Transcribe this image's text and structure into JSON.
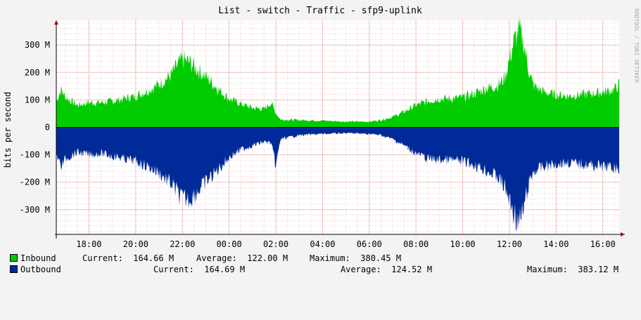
{
  "chart_data": {
    "type": "area",
    "title": "List - switch - Traffic - sfp9-uplink",
    "ylabel": "bits per second",
    "credit": "RRDTOOL / TOBI OETIKER",
    "ylim": [
      -390,
      390
    ],
    "yticks": [
      {
        "value": 300,
        "label": "300 M"
      },
      {
        "value": 200,
        "label": "200 M"
      },
      {
        "value": 100,
        "label": "100 M"
      },
      {
        "value": 0,
        "label": "0"
      },
      {
        "value": -100,
        "label": "-100 M"
      },
      {
        "value": -200,
        "label": "-200 M"
      },
      {
        "value": -300,
        "label": "-300 M"
      }
    ],
    "xlim": [
      16.6,
      40.7
    ],
    "xticks": [
      {
        "value": 18,
        "label": "18:00"
      },
      {
        "value": 20,
        "label": "20:00"
      },
      {
        "value": 22,
        "label": "22:00"
      },
      {
        "value": 24,
        "label": "00:00"
      },
      {
        "value": 26,
        "label": "02:00"
      },
      {
        "value": 28,
        "label": "04:00"
      },
      {
        "value": 30,
        "label": "06:00"
      },
      {
        "value": 32,
        "label": "08:00"
      },
      {
        "value": 34,
        "label": "10:00"
      },
      {
        "value": 36,
        "label": "12:00"
      },
      {
        "value": 38,
        "label": "14:00"
      },
      {
        "value": 40,
        "label": "16:00"
      }
    ],
    "x_unit": "hours",
    "grid": true,
    "series": [
      {
        "name": "Inbound",
        "color": "#00cc00",
        "sign": 1,
        "current": "164.66 M",
        "average": "122.00 M",
        "maximum": "380.45 M",
        "x": [
          16.6,
          16.8,
          17.0,
          17.5,
          18.0,
          18.5,
          19.0,
          19.5,
          20.0,
          20.5,
          21.0,
          21.5,
          21.8,
          22.0,
          22.3,
          22.6,
          23.0,
          23.5,
          24.0,
          24.5,
          25.0,
          25.5,
          25.8,
          26.0,
          26.2,
          27.0,
          28.0,
          29.0,
          30.0,
          30.5,
          31.0,
          31.5,
          32.0,
          32.5,
          33.0,
          33.5,
          34.0,
          34.5,
          35.0,
          35.5,
          35.8,
          36.0,
          36.2,
          36.4,
          36.6,
          36.8,
          37.0,
          37.2,
          37.5,
          38.0,
          38.5,
          39.0,
          39.5,
          40.0,
          40.5,
          40.7
        ],
        "y": [
          100,
          145,
          115,
          85,
          95,
          95,
          100,
          110,
          120,
          140,
          165,
          200,
          240,
          260,
          250,
          225,
          195,
          150,
          110,
          90,
          75,
          70,
          95,
          55,
          30,
          28,
          26,
          22,
          22,
          28,
          40,
          60,
          85,
          100,
          110,
          110,
          115,
          130,
          150,
          160,
          190,
          260,
          330,
          375,
          330,
          230,
          165,
          150,
          135,
          125,
          120,
          125,
          130,
          135,
          145,
          165
        ]
      },
      {
        "name": "Outbound",
        "color": "#002a97",
        "sign": -1,
        "current": "164.69 M",
        "average": "124.52 M",
        "maximum": "383.12 M",
        "x": [
          16.6,
          16.8,
          17.0,
          17.5,
          18.0,
          18.5,
          19.0,
          19.5,
          20.0,
          20.5,
          21.0,
          21.5,
          21.8,
          22.0,
          22.3,
          22.6,
          23.0,
          23.5,
          24.0,
          24.5,
          25.0,
          25.5,
          25.8,
          26.0,
          26.2,
          27.0,
          28.0,
          29.0,
          30.0,
          30.5,
          31.0,
          31.5,
          32.0,
          32.5,
          33.0,
          33.5,
          34.0,
          34.5,
          35.0,
          35.5,
          35.8,
          36.0,
          36.2,
          36.4,
          36.6,
          36.8,
          37.0,
          37.2,
          37.5,
          38.0,
          38.5,
          39.0,
          39.5,
          40.0,
          40.5,
          40.7
        ],
        "y": [
          100,
          150,
          120,
          95,
          105,
          100,
          110,
          120,
          130,
          150,
          175,
          215,
          250,
          275,
          275,
          250,
          210,
          165,
          115,
          85,
          70,
          55,
          60,
          150,
          45,
          30,
          25,
          22,
          25,
          30,
          45,
          70,
          100,
          120,
          125,
          125,
          130,
          145,
          165,
          190,
          230,
          280,
          330,
          370,
          320,
          230,
          175,
          160,
          150,
          140,
          135,
          140,
          145,
          150,
          155,
          165
        ]
      }
    ]
  }
}
